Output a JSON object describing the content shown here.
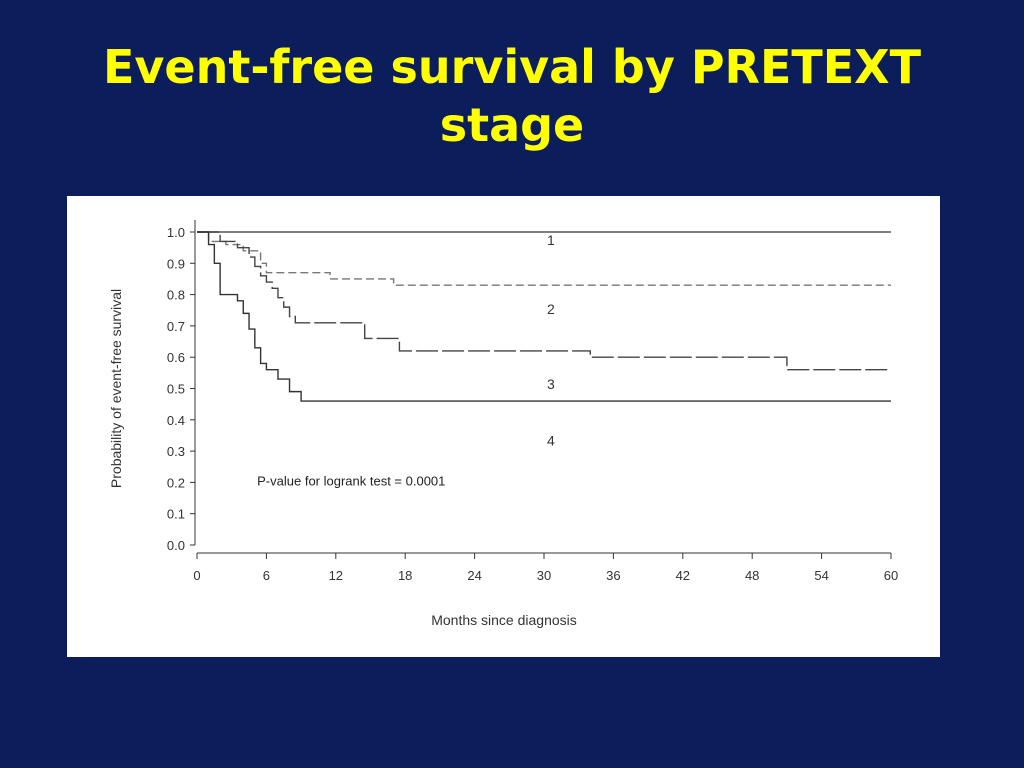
{
  "slide": {
    "title_line1": "Event-free survival by PRETEXT",
    "title_line2": "stage"
  },
  "colors": {
    "background": "#0b1d5a",
    "title": "#ffff00",
    "panel": "#ffffff",
    "ink": "#333333"
  },
  "chart_data": {
    "type": "line",
    "step": true,
    "title": "Event-free survival by PRETEXT stage",
    "xlabel": "Months since diagnosis",
    "ylabel": "Probability of event-free survival",
    "xlim": [
      0,
      60
    ],
    "ylim": [
      0.0,
      1.0
    ],
    "xticks": [
      "0",
      "6",
      "12",
      "18",
      "24",
      "30",
      "36",
      "42",
      "48",
      "54",
      "60"
    ],
    "yticks": [
      "0.0",
      "0.1",
      "0.2",
      "0.3",
      "0.4",
      "0.5",
      "0.6",
      "0.7",
      "0.8",
      "0.9",
      "1.0"
    ],
    "grid": false,
    "annotation": "P-value for logrank test = 0.0001",
    "series": [
      {
        "name": "1",
        "dash": "solid",
        "x": [
          0,
          60
        ],
        "y": [
          1.0,
          1.0
        ]
      },
      {
        "name": "2",
        "dash": "dashed",
        "x": [
          0,
          1,
          2.5,
          4,
          5.5,
          6,
          11.5,
          17,
          60
        ],
        "y": [
          1.0,
          0.97,
          0.96,
          0.94,
          0.9,
          0.87,
          0.85,
          0.83,
          0.83
        ]
      },
      {
        "name": "3",
        "dash": "longdash",
        "x": [
          0,
          2,
          3.5,
          4.5,
          5,
          5.5,
          6,
          6.5,
          7,
          7.5,
          8,
          8.5,
          14.5,
          17.5,
          34,
          51,
          60
        ],
        "y": [
          1.0,
          0.97,
          0.95,
          0.92,
          0.89,
          0.86,
          0.84,
          0.82,
          0.79,
          0.76,
          0.73,
          0.71,
          0.66,
          0.62,
          0.6,
          0.56,
          0.56
        ]
      },
      {
        "name": "4",
        "dash": "solid",
        "x": [
          0,
          1,
          1.5,
          2,
          3.5,
          4,
          4.5,
          5,
          5.5,
          6,
          7,
          8,
          9,
          60
        ],
        "y": [
          1.0,
          0.96,
          0.9,
          0.8,
          0.78,
          0.74,
          0.69,
          0.63,
          0.58,
          0.56,
          0.53,
          0.49,
          0.46,
          0.46
        ]
      }
    ],
    "curve_labels": [
      {
        "text": "1",
        "x": 28,
        "y": 0.99
      },
      {
        "text": "2",
        "x": 28,
        "y": 0.77
      },
      {
        "text": "3",
        "x": 28,
        "y": 0.53
      },
      {
        "text": "4",
        "x": 28,
        "y": 0.35
      }
    ]
  }
}
